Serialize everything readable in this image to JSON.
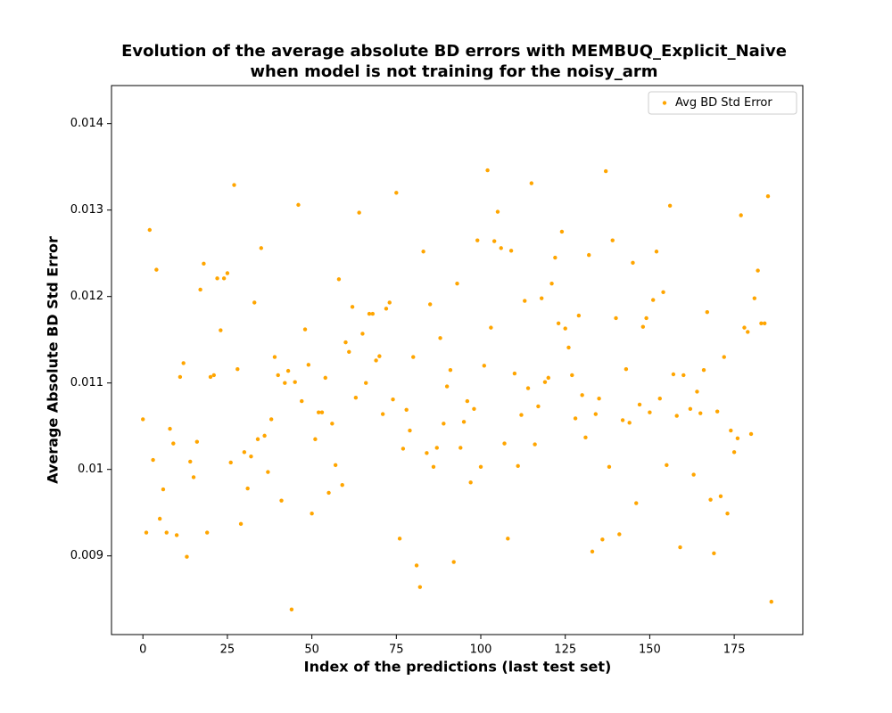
{
  "chart_data": {
    "type": "scatter",
    "title": "Evolution of the average absolute BD errors with MEMBUQ_Explicit_Naive\nwhen model is not training for the noisy_arm",
    "xlabel": "Index of the predictions (last test set)",
    "ylabel": "Average Absolute BD Std Error",
    "x": [
      0,
      1,
      2,
      3,
      4,
      5,
      6,
      7,
      8,
      9,
      10,
      11,
      12,
      13,
      14,
      15,
      16,
      17,
      18,
      19,
      20,
      21,
      22,
      23,
      24,
      25,
      26,
      27,
      28,
      29,
      30,
      31,
      32,
      33,
      34,
      35,
      36,
      37,
      38,
      39,
      40,
      41,
      42,
      43,
      44,
      45,
      46,
      47,
      48,
      49,
      50,
      51,
      52,
      53,
      54,
      55,
      56,
      57,
      58,
      59,
      60,
      61,
      62,
      63,
      64,
      65,
      66,
      67,
      68,
      69,
      70,
      71,
      72,
      73,
      74,
      75,
      76,
      77,
      78,
      79,
      80,
      81,
      82,
      83,
      84,
      85,
      86,
      87,
      88,
      89,
      90,
      91,
      92,
      93,
      94,
      95,
      96,
      97,
      98,
      99,
      100,
      101,
      102,
      103,
      104,
      105,
      106,
      107,
      108,
      109,
      110,
      111,
      112,
      113,
      114,
      115,
      116,
      117,
      118,
      119,
      120,
      121,
      122,
      123,
      124,
      125,
      126,
      127,
      128,
      129,
      130,
      131,
      132,
      133,
      134,
      135,
      136,
      137,
      138,
      139,
      140,
      141,
      142,
      143,
      144,
      145,
      146,
      147,
      148,
      149,
      150,
      151,
      152,
      153,
      154,
      155,
      156,
      157,
      158,
      159,
      160,
      161,
      162,
      163,
      164,
      165,
      166,
      167,
      168,
      169,
      170,
      171,
      172,
      173,
      174,
      175,
      176,
      177,
      178,
      179,
      180,
      181,
      182,
      183,
      184,
      185,
      186
    ],
    "series": [
      {
        "name": "Avg BD Std Error",
        "color": "#ffa500",
        "values": [
          0.01058,
          0.00927,
          0.01277,
          0.01011,
          0.01231,
          0.00943,
          0.00977,
          0.00927,
          0.01047,
          0.0103,
          0.00924,
          0.01107,
          0.01123,
          0.00899,
          0.01009,
          0.00991,
          0.01032,
          0.01208,
          0.01238,
          0.00927,
          0.01107,
          0.01109,
          0.01221,
          0.01161,
          0.01221,
          0.01227,
          0.01008,
          0.01329,
          0.01116,
          0.00937,
          0.0102,
          0.00978,
          0.01015,
          0.01193,
          0.01035,
          0.01256,
          0.01039,
          0.00997,
          0.01058,
          0.0113,
          0.01109,
          0.00964,
          0.011,
          0.01114,
          0.00838,
          0.01101,
          0.01306,
          0.01079,
          0.01162,
          0.01121,
          0.00949,
          0.01035,
          0.01066,
          0.01066,
          0.01106,
          0.00973,
          0.01053,
          0.01005,
          0.0122,
          0.00982,
          0.01147,
          0.01136,
          0.01188,
          0.01083,
          0.01297,
          0.01157,
          0.011,
          0.0118,
          0.0118,
          0.01126,
          0.01131,
          0.01064,
          0.01186,
          0.01193,
          0.01081,
          0.0132,
          0.0092,
          0.01024,
          0.01069,
          0.01045,
          0.0113,
          0.00889,
          0.00864,
          0.01252,
          0.01019,
          0.01191,
          0.01003,
          0.01025,
          0.01152,
          0.01053,
          0.01096,
          0.01115,
          0.00893,
          0.01215,
          0.01025,
          0.01055,
          0.01079,
          0.00985,
          0.0107,
          0.01265,
          0.01003,
          0.0112,
          0.01346,
          0.01164,
          0.01264,
          0.01298,
          0.01256,
          0.0103,
          0.0092,
          0.01253,
          0.01111,
          0.01004,
          0.01063,
          0.01195,
          0.01094,
          0.01331,
          0.01029,
          0.01073,
          0.01198,
          0.01101,
          0.01106,
          0.01215,
          0.01245,
          0.01169,
          0.01275,
          0.01163,
          0.01141,
          0.01109,
          0.01059,
          0.01178,
          0.01086,
          0.01037,
          0.01248,
          0.00905,
          0.01064,
          0.01082,
          0.00919,
          0.01345,
          0.01003,
          0.01265,
          0.01175,
          0.00925,
          0.01057,
          0.01116,
          0.01054,
          0.01239,
          0.00961,
          0.01075,
          0.01165,
          0.01175,
          0.01066,
          0.01196,
          0.01252,
          0.01082,
          0.01205,
          0.01005,
          0.01305,
          0.0111,
          0.01062,
          0.0091,
          0.01109,
          0.01416,
          0.0107,
          0.00994,
          0.0109,
          0.01065,
          0.01115,
          0.01182,
          0.00965,
          0.00903,
          0.01067,
          0.00969,
          0.0113,
          0.00949,
          0.01045,
          0.0102,
          0.01036,
          0.01294,
          0.01164,
          0.01159,
          0.01041,
          0.01198,
          0.0123,
          0.01169,
          0.01169,
          0.01316,
          0.00847
        ]
      }
    ],
    "xlim": [
      -9.3,
      195.3
    ],
    "ylim": [
      0.00809,
      0.01444
    ],
    "xticks": [
      0,
      25,
      50,
      75,
      100,
      125,
      150,
      175
    ],
    "yticks": [
      0.009,
      0.01,
      0.011,
      0.012,
      0.013,
      0.014
    ],
    "legend": "upper right"
  }
}
